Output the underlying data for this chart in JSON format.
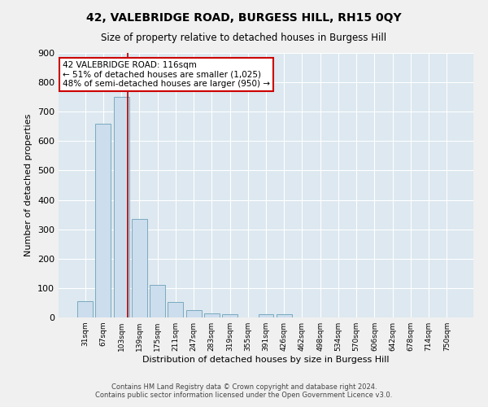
{
  "title": "42, VALEBRIDGE ROAD, BURGESS HILL, RH15 0QY",
  "subtitle": "Size of property relative to detached houses in Burgess Hill",
  "xlabel": "Distribution of detached houses by size in Burgess Hill",
  "ylabel": "Number of detached properties",
  "bar_color": "#ccdded",
  "bar_edge_color": "#7aaabf",
  "bar_values": [
    55,
    660,
    750,
    335,
    110,
    52,
    25,
    15,
    10,
    0,
    10,
    10,
    0,
    0,
    0,
    0,
    0,
    0,
    0,
    0,
    0
  ],
  "x_labels": [
    "31sqm",
    "67sqm",
    "103sqm",
    "139sqm",
    "175sqm",
    "211sqm",
    "247sqm",
    "283sqm",
    "319sqm",
    "355sqm",
    "391sqm",
    "426sqm",
    "462sqm",
    "498sqm",
    "534sqm",
    "570sqm",
    "606sqm",
    "642sqm",
    "678sqm",
    "714sqm",
    "750sqm"
  ],
  "ylim": [
    0,
    900
  ],
  "yticks": [
    0,
    100,
    200,
    300,
    400,
    500,
    600,
    700,
    800,
    900
  ],
  "red_line_x": 2.36,
  "annotation_title": "42 VALEBRIDGE ROAD: 116sqm",
  "annotation_line1": "← 51% of detached houses are smaller (1,025)",
  "annotation_line2": "48% of semi-detached houses are larger (950) →",
  "annotation_box_color": "#ffffff",
  "annotation_border_color": "#cc0000",
  "footer_line1": "Contains HM Land Registry data © Crown copyright and database right 2024.",
  "footer_line2": "Contains public sector information licensed under the Open Government Licence v3.0.",
  "fig_background": "#f0f0f0",
  "plot_background": "#dde8f0",
  "grid_color": "#ffffff"
}
